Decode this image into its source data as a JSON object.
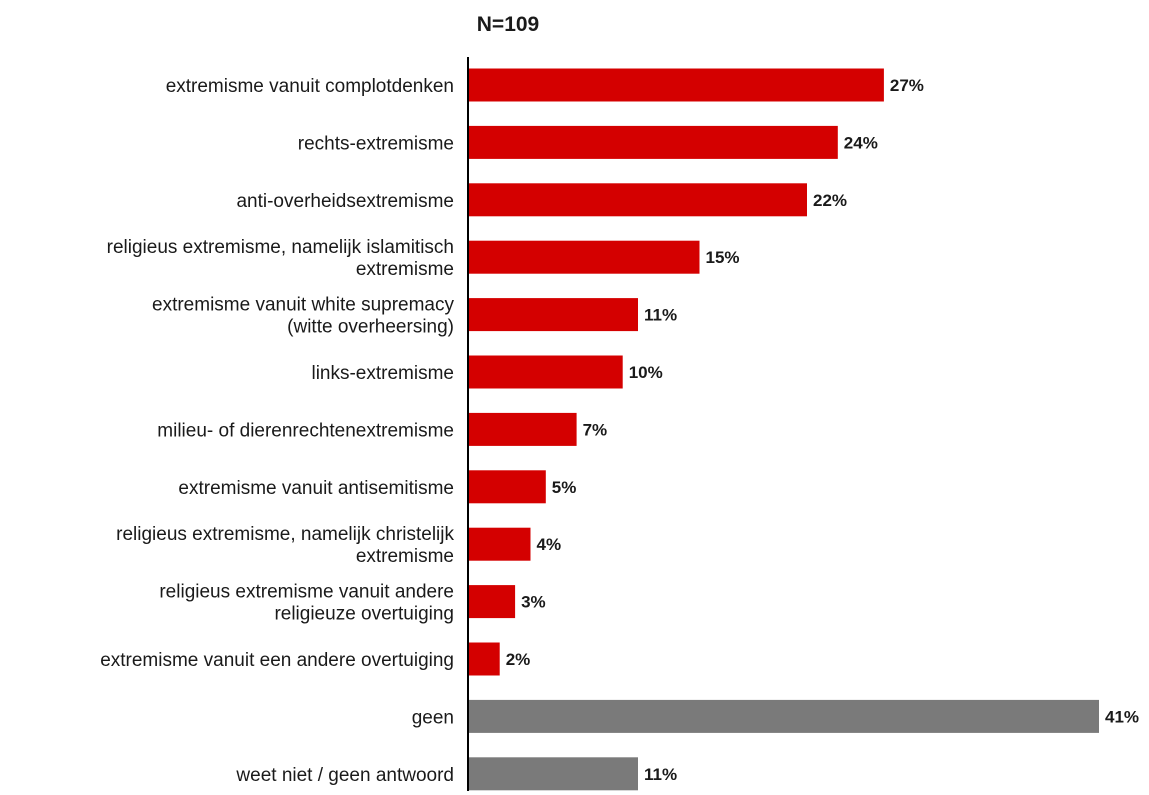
{
  "chart_data": {
    "type": "bar",
    "orientation": "horizontal",
    "title": "N=109",
    "xlabel": "",
    "ylabel": "",
    "xlim": [
      0,
      41
    ],
    "grid": false,
    "legend": "none",
    "unit": "%",
    "categories": [
      [
        "extremisme vanuit complotdenken"
      ],
      [
        "rechts-extremisme"
      ],
      [
        "anti-overheidsextremisme"
      ],
      [
        "religieus extremisme, namelijk islamitisch",
        "extremisme"
      ],
      [
        "extremisme vanuit white supremacy",
        "(witte overheersing)"
      ],
      [
        "links-extremisme"
      ],
      [
        "milieu- of dierenrechtenextremisme"
      ],
      [
        "extremisme vanuit antisemitisme"
      ],
      [
        "religieus extremisme, namelijk christelijk",
        "extremisme"
      ],
      [
        "religieus extremisme vanuit andere",
        "religieuze overtuiging"
      ],
      [
        "extremisme vanuit een andere overtuiging"
      ],
      [
        "geen"
      ],
      [
        "weet niet / geen antwoord"
      ]
    ],
    "values": [
      27,
      24,
      22,
      15,
      11,
      10,
      7,
      5,
      4,
      3,
      2,
      41,
      11
    ],
    "value_labels": [
      "27%",
      "24%",
      "22%",
      "15%",
      "11%",
      "10%",
      "7%",
      "5%",
      "4%",
      "3%",
      "2%",
      "41%",
      "11%"
    ],
    "bar_colors": [
      "#d40000",
      "#d40000",
      "#d40000",
      "#d40000",
      "#d40000",
      "#d40000",
      "#d40000",
      "#d40000",
      "#d40000",
      "#d40000",
      "#d40000",
      "#7a7a7a",
      "#7a7a7a"
    ],
    "axis_color": "#000000"
  }
}
